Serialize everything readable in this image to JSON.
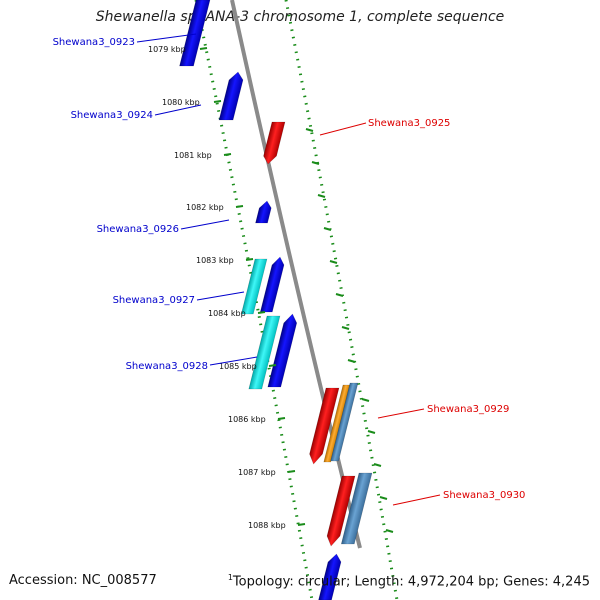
{
  "title": "Shewanella sp. ANA-3 chromosome 1, complete sequence",
  "accession": "Accession: NC_008577",
  "topology_marker": "1",
  "topology": "Topology: circular; Length: 4,972,204 bp; Genes: 4,245",
  "colors": {
    "forward_gene": "#0000e6",
    "reverse_gene": "#ee0000",
    "cyan_feature": "#00e5e5",
    "orange_feature": "#f39a1a",
    "steel_feature": "#4a86b8",
    "axis": "#8a8a8a",
    "ruler": "#1a8c1a",
    "forward_label": "#0000cc",
    "reverse_label": "#dd0000"
  },
  "ruler": [
    "1079 kbp",
    "1080 kbp",
    "1081 kbp",
    "1082 kbp",
    "1083 kbp",
    "1084 kbp",
    "1085 kbp",
    "1086 kbp",
    "1087 kbp",
    "1088 kbp"
  ],
  "genes_forward": [
    {
      "name": "Shewana3_0923"
    },
    {
      "name": "Shewana3_0924"
    },
    {
      "name": "Shewana3_0926"
    },
    {
      "name": "Shewana3_0927"
    },
    {
      "name": "Shewana3_0928"
    }
  ],
  "genes_reverse": [
    {
      "name": "Shewana3_0925"
    },
    {
      "name": "Shewana3_0929"
    },
    {
      "name": "Shewana3_0930"
    }
  ]
}
